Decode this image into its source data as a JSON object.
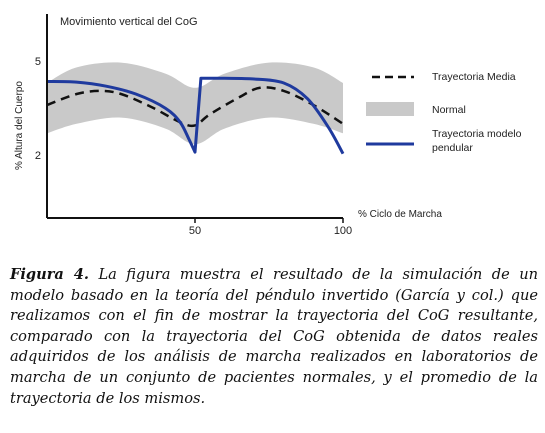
{
  "chart_data": {
    "type": "line",
    "title": "Movimiento vertical del CoG",
    "ylabel": "% Altura del Cuerpo",
    "xlabel": "% Ciclo de Marcha",
    "xlim": [
      0,
      100
    ],
    "ylim": [
      0,
      6.5
    ],
    "x_ticks": [
      50,
      100
    ],
    "y_ticks": [
      2,
      5
    ],
    "grid": false,
    "legend": "right",
    "normal_band": {
      "name": "Normal",
      "x": [
        0,
        10,
        25,
        40,
        50,
        60,
        75,
        90,
        100
      ],
      "upper": [
        4.3,
        4.8,
        4.95,
        4.6,
        4.15,
        4.6,
        4.95,
        4.8,
        4.3
      ],
      "lower": [
        2.7,
        3.0,
        3.2,
        2.85,
        2.35,
        2.85,
        3.2,
        3.0,
        2.7
      ]
    },
    "series": [
      {
        "name": "Trayectoria Media",
        "style": "dashed",
        "color": "#111111",
        "x": [
          0,
          10,
          18,
          25,
          35,
          45,
          50,
          55,
          65,
          72,
          80,
          90,
          100
        ],
        "y": [
          3.6,
          3.95,
          4.05,
          3.95,
          3.55,
          3.05,
          2.95,
          3.3,
          3.85,
          4.15,
          4.05,
          3.6,
          3.0
        ]
      },
      {
        "name": "Trayectoria modelo pendular",
        "style": "solid",
        "color": "#1f3a9e",
        "x": [
          0,
          10,
          20,
          30,
          40,
          45,
          48,
          50,
          52,
          60,
          70,
          80,
          88,
          95,
          100
        ],
        "y": [
          4.35,
          4.33,
          4.2,
          3.95,
          3.5,
          3.05,
          2.5,
          2.1,
          4.45,
          4.45,
          4.43,
          4.3,
          3.8,
          2.9,
          2.05
        ]
      }
    ]
  },
  "caption": {
    "label": "Figura 4.",
    "text": " La figura muestra el resultado de la simulación de un modelo basado en la teoría del péndulo invertido (García y col.) que realizamos con el fin de mostrar la trayectoria del CoG resultante, comparado con la trayectoria del CoG obtenida de datos reales adquiridos de los análisis de marcha realizados en laboratorios de marcha de un conjunto de pacientes normales, y el promedio de la trayectoria de los mismos."
  },
  "colors": {
    "band": "#c9c9c9",
    "model": "#1f3a9e",
    "mean": "#111111",
    "axis": "#111111"
  }
}
